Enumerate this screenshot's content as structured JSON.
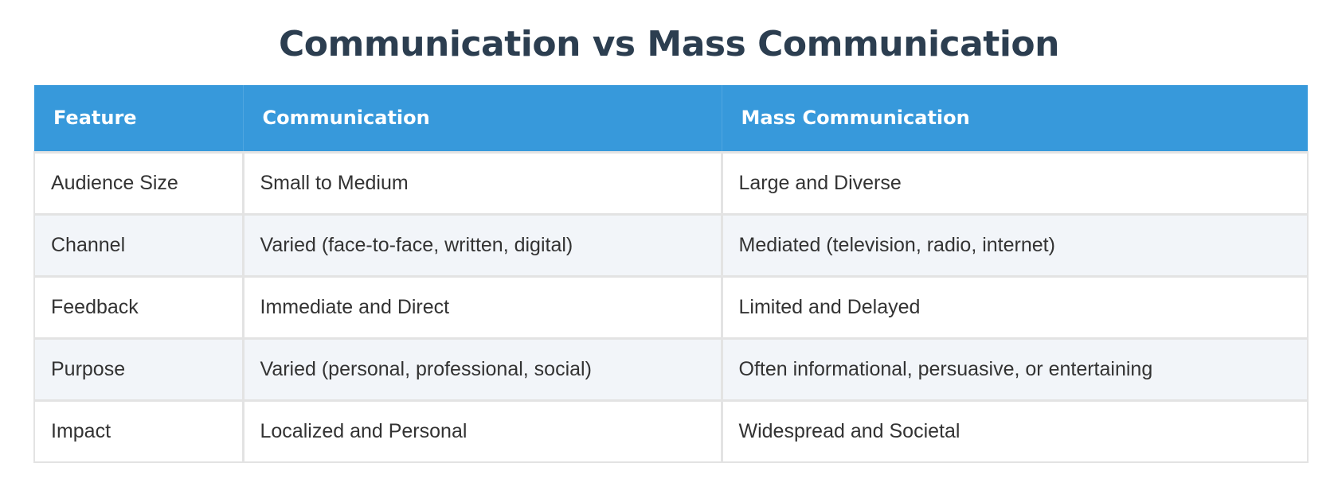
{
  "title": "Communication vs Mass Communication",
  "table": {
    "headers": [
      "Feature",
      "Communication",
      "Mass Communication"
    ],
    "rows": [
      [
        "Audience Size",
        "Small to Medium",
        "Large and Diverse"
      ],
      [
        "Channel",
        "Varied (face-to-face, written, digital)",
        "Mediated (television, radio, internet)"
      ],
      [
        "Feedback",
        "Immediate and Direct",
        "Limited and Delayed"
      ],
      [
        "Purpose",
        "Varied (personal, professional, social)",
        "Often informational, persuasive, or entertaining"
      ],
      [
        "Impact",
        "Localized and Personal",
        "Widespread and Societal"
      ]
    ]
  },
  "colors": {
    "title": "#2c3e50",
    "header_bg": "#3799db",
    "header_text": "#ffffff",
    "row_alt_bg": "#f2f5f9",
    "cell_text": "#333333",
    "border": "#e3e3e3"
  }
}
